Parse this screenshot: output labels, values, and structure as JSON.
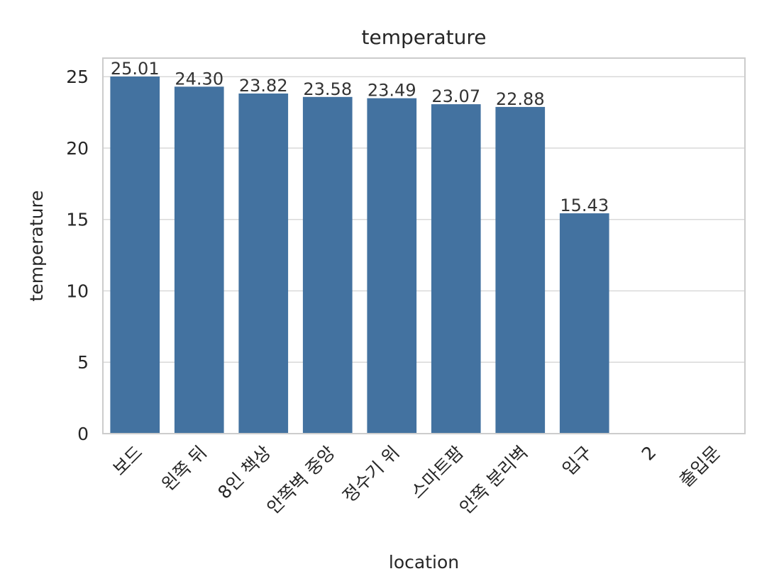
{
  "chart_data": {
    "type": "bar",
    "title": "temperature",
    "xlabel": "location",
    "ylabel": "temperature",
    "categories": [
      "보드",
      "왼쪽 뒤",
      "8인 책상",
      "안쪽벽 중앙",
      "정수기 위",
      "스마트팜",
      "안쪽 분리벽",
      "입구",
      "2",
      "출입문"
    ],
    "values": [
      25.01,
      24.3,
      23.82,
      23.58,
      23.49,
      23.07,
      22.88,
      15.43,
      null,
      null
    ],
    "data_labels": [
      "25.01",
      "24.30",
      "23.82",
      "23.58",
      "23.49",
      "23.07",
      "22.88",
      "15.43",
      "",
      ""
    ],
    "yticks": [
      0,
      5,
      10,
      15,
      20,
      25
    ],
    "ylim": [
      0,
      26.3
    ],
    "grid": "y",
    "bar_color": "#4372a0"
  }
}
